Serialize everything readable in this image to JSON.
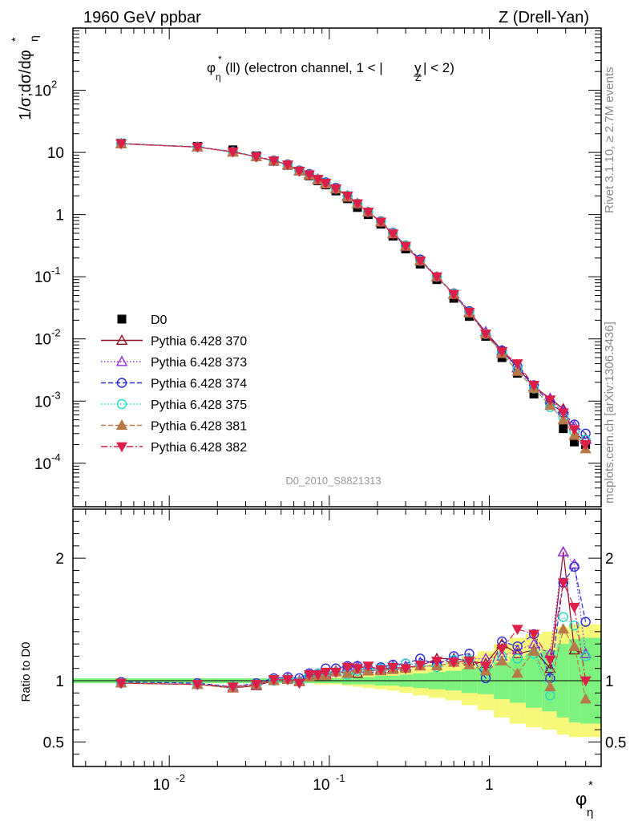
{
  "header": {
    "left": "1960 GeV ppbar",
    "right": "Z (Drell-Yan)"
  },
  "side": {
    "rivet": "Rivet 3.1.10, ≥ 2.7M events",
    "mcplots": "mcplots.cern.ch [arXiv:1306.3436]"
  },
  "plot_title": "φ*η(ll) (electron channel, 1 < |yZ| < 2)",
  "analysis_id": "D0_2010_S8821313",
  "chart_data": [
    {
      "type": "scatter",
      "panel": "main",
      "x_scale": "log",
      "y_scale": "log",
      "xlim": [
        0.0025,
        5
      ],
      "ylim": [
        2e-05,
        1000
      ],
      "ylabel": "1/σ;dσ/dφ*η",
      "xlabel": "φ*η",
      "x_tick_labels": [
        "10^-2",
        "10^-1",
        "1"
      ],
      "y_tick_labels": [
        "10^-4",
        "10^-3",
        "10^-2",
        "10^-1",
        "1",
        "10",
        "10^2"
      ],
      "x": [
        0.005,
        0.015,
        0.025,
        0.035,
        0.045,
        0.055,
        0.065,
        0.075,
        0.085,
        0.095,
        0.11,
        0.13,
        0.15,
        0.175,
        0.21,
        0.25,
        0.3,
        0.37,
        0.47,
        0.6,
        0.75,
        0.95,
        1.2,
        1.5,
        1.9,
        2.4,
        2.9,
        3.4,
        4.0
      ],
      "series": [
        {
          "name": "D0",
          "color": "#000000",
          "marker": "square-filled",
          "values": [
            14,
            12.5,
            11,
            8.8,
            7.2,
            6.2,
            5.0,
            4.2,
            3.5,
            3.0,
            2.4,
            1.8,
            1.3,
            1.0,
            0.7,
            0.45,
            0.28,
            0.16,
            0.09,
            0.045,
            0.023,
            0.011,
            0.005,
            0.0028,
            0.0013,
            0.0009,
            0.00036,
            0.00022,
            0.0002
          ]
        },
        {
          "name": "Pythia 6.428 370",
          "color": "#8b0f25",
          "dash": "solid",
          "marker": "triangle-up-open",
          "values": [
            13.8,
            12.2,
            10.2,
            8.5,
            7.3,
            6.3,
            5.0,
            4.4,
            3.7,
            3.2,
            2.6,
            2.0,
            1.5,
            1.1,
            0.76,
            0.49,
            0.31,
            0.18,
            0.1,
            0.053,
            0.027,
            0.013,
            0.0065,
            0.0035,
            0.0017,
            0.0011,
            0.00075,
            0.00028,
            0.00025
          ]
        },
        {
          "name": "Pythia 6.428 373",
          "color": "#9a2bd9",
          "dash": "1.5,2.5",
          "marker": "triangle-up-open",
          "values": [
            13.7,
            12.1,
            10.1,
            8.5,
            7.3,
            6.3,
            5.0,
            4.4,
            3.7,
            3.2,
            2.6,
            2.0,
            1.5,
            1.1,
            0.76,
            0.5,
            0.31,
            0.18,
            0.1,
            0.053,
            0.027,
            0.013,
            0.006,
            0.0034,
            0.0017,
            0.0011,
            0.0007,
            0.0004,
            0.00024
          ]
        },
        {
          "name": "Pythia 6.428 374",
          "color": "#2b2bd9",
          "dash": "6,3",
          "marker": "circle-open",
          "values": [
            13.9,
            12.3,
            10.3,
            8.6,
            7.4,
            6.4,
            5.1,
            4.5,
            3.7,
            3.3,
            2.7,
            2.0,
            1.5,
            1.1,
            0.78,
            0.51,
            0.32,
            0.19,
            0.1,
            0.054,
            0.028,
            0.012,
            0.0065,
            0.0036,
            0.0018,
            0.00092,
            0.00065,
            0.00042,
            0.0003
          ]
        },
        {
          "name": "Pythia 6.428 375",
          "color": "#22d8c8",
          "dash": "1.5,2.5",
          "marker": "circle-open",
          "values": [
            13.8,
            12.2,
            10.2,
            8.5,
            7.3,
            6.3,
            5.0,
            4.4,
            3.7,
            3.2,
            2.6,
            2.0,
            1.5,
            1.1,
            0.77,
            0.5,
            0.32,
            0.18,
            0.1,
            0.053,
            0.027,
            0.012,
            0.006,
            0.0033,
            0.0016,
            0.0008,
            0.00055,
            0.00032,
            0.00024
          ]
        },
        {
          "name": "Pythia 6.428 381",
          "color": "#b8794a",
          "dash": "6,3",
          "marker": "triangle-up-filled",
          "values": [
            13.7,
            12.2,
            10.1,
            8.5,
            7.3,
            6.3,
            5.0,
            4.3,
            3.6,
            3.1,
            2.6,
            1.9,
            1.5,
            1.1,
            0.76,
            0.49,
            0.31,
            0.18,
            0.1,
            0.052,
            0.026,
            0.012,
            0.0058,
            0.003,
            0.0016,
            0.00085,
            0.0005,
            0.00028,
            0.00017
          ]
        },
        {
          "name": "Pythia 6.428 382",
          "color": "#dc1f48",
          "dash": "8,3,2,3",
          "marker": "triangle-down-filled",
          "values": [
            13.8,
            12.2,
            10.2,
            8.5,
            7.3,
            6.3,
            5.0,
            4.4,
            3.7,
            3.2,
            2.6,
            2.0,
            1.5,
            1.1,
            0.76,
            0.49,
            0.31,
            0.18,
            0.1,
            0.052,
            0.027,
            0.012,
            0.0063,
            0.004,
            0.0018,
            0.00105,
            0.00065,
            0.00035,
            0.0002
          ]
        }
      ],
      "legend_position": "left-center"
    },
    {
      "type": "scatter",
      "panel": "ratio",
      "x_scale": "linear-in-log-x",
      "ylim": [
        0.3,
        2.4
      ],
      "ylabel": "Ratio to D0",
      "xlabel": "φ*η",
      "y_tick_labels": [
        "0.5",
        "1",
        "2"
      ],
      "x": [
        0.005,
        0.015,
        0.025,
        0.035,
        0.045,
        0.055,
        0.065,
        0.075,
        0.085,
        0.095,
        0.11,
        0.13,
        0.15,
        0.175,
        0.21,
        0.25,
        0.3,
        0.37,
        0.47,
        0.6,
        0.75,
        0.95,
        1.2,
        1.5,
        1.9,
        2.4,
        2.9,
        3.4,
        4.0
      ],
      "band_inner": [
        0.02,
        0.02,
        0.02,
        0.02,
        0.02,
        0.02,
        0.02,
        0.02,
        0.02,
        0.02,
        0.02,
        0.03,
        0.03,
        0.03,
        0.04,
        0.04,
        0.05,
        0.06,
        0.07,
        0.08,
        0.1,
        0.11,
        0.15,
        0.18,
        0.22,
        0.25,
        0.3,
        0.34,
        0.35
      ],
      "band_outer": [
        0.02,
        0.02,
        0.02,
        0.02,
        0.02,
        0.02,
        0.02,
        0.02,
        0.03,
        0.03,
        0.03,
        0.04,
        0.05,
        0.06,
        0.07,
        0.08,
        0.1,
        0.12,
        0.14,
        0.16,
        0.2,
        0.24,
        0.3,
        0.35,
        0.38,
        0.4,
        0.44,
        0.46,
        0.46
      ],
      "series": [
        {
          "name": "Pythia 6.428 370",
          "values": [
            0.98,
            0.97,
            0.94,
            0.96,
            1.0,
            1.02,
            0.99,
            1.03,
            1.05,
            1.05,
            1.08,
            1.06,
            1.06,
            1.08,
            1.09,
            1.1,
            1.11,
            1.12,
            1.18,
            1.18,
            1.16,
            1.14,
            1.3,
            1.22,
            1.25,
            1.1,
            2.05,
            1.25,
            1.22
          ]
        },
        {
          "name": "Pythia 6.428 373",
          "values": [
            0.98,
            0.97,
            0.95,
            0.97,
            1.0,
            1.02,
            1.0,
            1.05,
            1.05,
            1.06,
            1.08,
            1.11,
            1.12,
            1.1,
            1.1,
            1.12,
            1.12,
            1.15,
            1.15,
            1.17,
            1.18,
            1.18,
            1.2,
            1.25,
            1.3,
            1.22,
            2.05,
            1.95,
            1.22
          ]
        },
        {
          "name": "Pythia 6.428 374",
          "values": [
            0.99,
            0.98,
            0.95,
            0.98,
            1.02,
            1.03,
            1.02,
            1.06,
            1.06,
            1.1,
            1.1,
            1.12,
            1.12,
            1.1,
            1.11,
            1.13,
            1.14,
            1.18,
            1.13,
            1.2,
            1.22,
            1.02,
            1.32,
            1.28,
            1.38,
            1.02,
            1.8,
            1.93,
            1.48
          ]
        },
        {
          "name": "Pythia 6.428 375",
          "values": [
            0.98,
            0.97,
            0.95,
            0.97,
            1.0,
            1.01,
            0.99,
            1.04,
            1.06,
            1.06,
            1.07,
            1.05,
            1.08,
            1.09,
            1.1,
            1.11,
            1.14,
            1.13,
            1.11,
            1.17,
            1.17,
            1.1,
            1.2,
            1.18,
            1.22,
            0.88,
            1.52,
            1.45,
            1.2
          ]
        },
        {
          "name": "Pythia 6.428 381",
          "values": [
            0.98,
            0.97,
            0.94,
            0.97,
            1.0,
            1.01,
            0.99,
            1.03,
            1.04,
            1.04,
            1.07,
            1.06,
            1.1,
            1.08,
            1.08,
            1.09,
            1.1,
            1.12,
            1.12,
            1.15,
            1.13,
            1.08,
            1.16,
            1.06,
            1.24,
            0.95,
            1.42,
            1.28,
            0.85
          ]
        },
        {
          "name": "Pythia 6.428 382",
          "values": [
            0.98,
            0.97,
            0.95,
            0.97,
            1.01,
            1.01,
            0.98,
            1.05,
            1.05,
            1.07,
            1.07,
            1.11,
            1.1,
            1.12,
            1.09,
            1.11,
            1.1,
            1.13,
            1.16,
            1.15,
            1.16,
            1.12,
            1.26,
            1.42,
            1.38,
            1.17,
            1.8,
            1.6,
            1.0
          ]
        }
      ]
    }
  ]
}
